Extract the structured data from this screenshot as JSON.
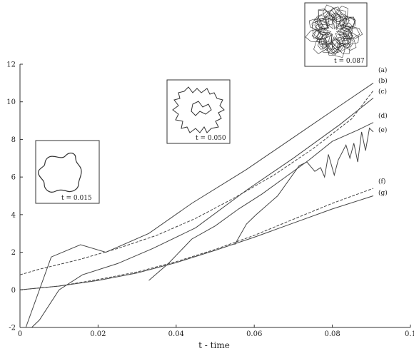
{
  "chart_data": {
    "type": "line",
    "title": "",
    "xlabel": "t - time",
    "ylabel": "",
    "xlim": [
      0,
      0.1
    ],
    "ylim": [
      -2,
      12
    ],
    "x_ticks": [
      "0",
      "0.02",
      "0.04",
      "0.06",
      "0.08",
      "0.1"
    ],
    "y_ticks": [
      "-2",
      "0",
      "2",
      "4",
      "6",
      "8",
      "10",
      "12"
    ],
    "grid": false,
    "series": [
      {
        "name": "(a)",
        "style": "solid",
        "x": [
          0.0015,
          0.008,
          0.0155,
          0.022,
          0.033,
          0.044,
          0.058,
          0.07,
          0.082,
          0.0905
        ],
        "y": [
          -2.0,
          1.75,
          2.4,
          2.0,
          3.0,
          4.6,
          6.4,
          8.1,
          9.8,
          11.0
        ]
      },
      {
        "name": "(b)",
        "style": "dashed",
        "x": [
          0.0,
          0.005,
          0.015,
          0.025,
          0.035,
          0.045,
          0.055,
          0.065,
          0.075,
          0.085,
          0.0905
        ],
        "y": [
          0.8,
          1.1,
          1.6,
          2.2,
          2.9,
          3.8,
          4.9,
          6.1,
          7.5,
          9.1,
          10.6
        ]
      },
      {
        "name": "(c)",
        "style": "solid",
        "x": [
          0.003,
          0.005,
          0.01,
          0.016,
          0.025,
          0.034,
          0.045,
          0.058,
          0.07,
          0.082,
          0.0905
        ],
        "y": [
          -2.0,
          -1.6,
          0.0,
          0.8,
          1.4,
          2.2,
          3.3,
          5.3,
          7.0,
          8.8,
          10.2
        ]
      },
      {
        "name": "(d)",
        "style": "solid",
        "x": [
          0.033,
          0.038,
          0.044,
          0.05,
          0.056,
          0.062,
          0.068,
          0.074,
          0.08,
          0.0865,
          0.0905
        ],
        "y": [
          0.5,
          1.4,
          2.7,
          3.4,
          4.3,
          5.1,
          6.0,
          6.9,
          7.9,
          8.5,
          8.9
        ]
      },
      {
        "name": "(e)",
        "style": "solid",
        "x": [
          0.055,
          0.058,
          0.0605,
          0.066,
          0.0715,
          0.0735,
          0.0755,
          0.077,
          0.078,
          0.079,
          0.0805,
          0.0815,
          0.0835,
          0.0845,
          0.0855,
          0.0865,
          0.0875,
          0.0885,
          0.0895,
          0.0905
        ],
        "y": [
          2.4,
          3.5,
          4.0,
          5.0,
          6.6,
          6.8,
          6.3,
          6.5,
          6.0,
          7.2,
          6.1,
          6.9,
          7.7,
          7.0,
          7.8,
          6.8,
          8.4,
          7.4,
          8.6,
          8.4
        ]
      },
      {
        "name": "(f)",
        "style": "dashed",
        "x": [
          0.0,
          0.01,
          0.02,
          0.03,
          0.04,
          0.05,
          0.06,
          0.07,
          0.08,
          0.0905
        ],
        "y": [
          0.0,
          0.2,
          0.55,
          0.95,
          1.5,
          2.15,
          2.9,
          3.75,
          4.6,
          5.4
        ]
      },
      {
        "name": "(g)",
        "style": "solid",
        "x": [
          0.0,
          0.01,
          0.02,
          0.03,
          0.04,
          0.05,
          0.06,
          0.07,
          0.08,
          0.0905
        ],
        "y": [
          0.0,
          0.2,
          0.5,
          0.9,
          1.45,
          2.1,
          2.8,
          3.55,
          4.3,
          5.0
        ]
      }
    ],
    "insets": [
      {
        "label": "t = 0.015"
      },
      {
        "label": "t = 0.050"
      },
      {
        "label": "t = 0.087"
      }
    ]
  }
}
